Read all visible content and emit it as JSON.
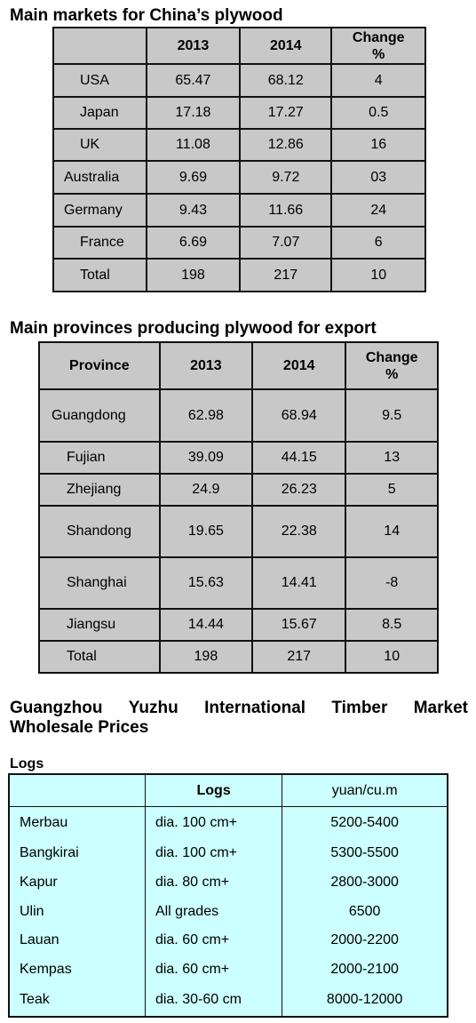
{
  "markets": {
    "title": "Main markets for China’s plywood",
    "headers": [
      "",
      "2013",
      "2014",
      "Change\n%"
    ],
    "rows": [
      [
        "USA",
        "65.47",
        "68.12",
        "4"
      ],
      [
        "Japan",
        "17.18",
        "17.27",
        "0.5"
      ],
      [
        "UK",
        "11.08",
        "12.86",
        "16"
      ],
      [
        "Australia",
        "9.69",
        "9.72",
        "03"
      ],
      [
        "Germany",
        "9.43",
        "11.66",
        "24"
      ],
      [
        "France",
        "6.69",
        "7.07",
        "6"
      ],
      [
        "Total",
        "198",
        "217",
        "10"
      ]
    ]
  },
  "provinces": {
    "title": "Main provinces producing plywood for export",
    "headers": [
      "Province",
      "2013",
      "2014",
      "Change\n%"
    ],
    "rows": [
      [
        "Guangdong",
        "62.98",
        "68.94",
        "9.5"
      ],
      [
        "Fujian",
        "39.09",
        "44.15",
        "13"
      ],
      [
        "Zhejiang",
        "24.9",
        "26.23",
        "5"
      ],
      [
        "Shandong",
        "19.65",
        "22.38",
        "14"
      ],
      [
        "Shanghai",
        "15.63",
        "14.41",
        "-8"
      ],
      [
        "Jiangsu",
        "14.44",
        "15.67",
        "8.5"
      ],
      [
        "Total",
        "198",
        "217",
        "10"
      ]
    ]
  },
  "guangzhou": {
    "title_words": [
      "Guangzhou",
      "Yuzhu",
      "International",
      "Timber",
      "Market"
    ],
    "title_line2": "Wholesale Prices"
  },
  "logs": {
    "label": "Logs",
    "headers": [
      "",
      "Logs",
      "yuan/cu.m"
    ],
    "rows": [
      [
        "Merbau",
        "dia. 100 cm+",
        "5200-5400"
      ],
      [
        "Bangkirai",
        "dia. 100 cm+",
        "5300-5500"
      ],
      [
        "Kapur",
        "dia. 80 cm+",
        "2800-3000"
      ],
      [
        "Ulin",
        "All grades",
        "6500"
      ],
      [
        "Lauan",
        "dia. 60 cm+",
        "2000-2200"
      ],
      [
        "Kempas",
        "dia. 60 cm+",
        "2000-2100"
      ],
      [
        "Teak",
        "dia. 30-60 cm",
        "8000-12000"
      ]
    ]
  }
}
